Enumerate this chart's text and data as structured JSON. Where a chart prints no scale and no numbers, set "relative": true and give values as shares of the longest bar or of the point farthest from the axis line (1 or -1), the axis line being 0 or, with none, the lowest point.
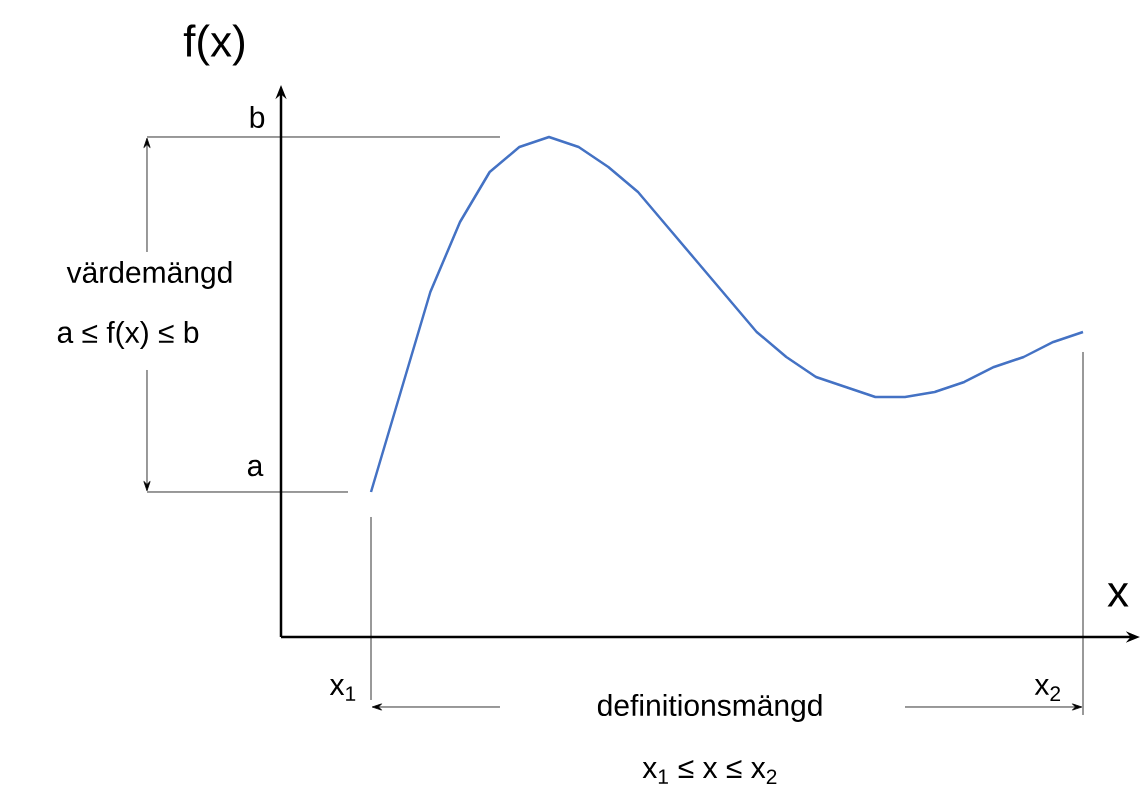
{
  "chart_data": {
    "type": "line",
    "relative": true,
    "xlabel": "x",
    "ylabel": "f(x)",
    "color": "#4472c4",
    "categories": [
      null,
      null,
      null,
      null,
      null,
      null,
      null,
      null,
      null,
      null,
      null,
      null,
      null,
      null,
      null,
      null,
      null,
      null,
      null,
      null,
      null,
      null,
      null,
      null,
      null
    ],
    "values": [
      0.29,
      0.49,
      0.69,
      0.83,
      0.93,
      0.98,
      1.0,
      0.98,
      0.94,
      0.89,
      0.82,
      0.75,
      0.68,
      0.61,
      0.56,
      0.52,
      0.5,
      0.48,
      0.48,
      0.49,
      0.51,
      0.54,
      0.56,
      0.59,
      0.61
    ],
    "annotations": [
      "b",
      "a",
      "x$_{1}$",
      "x$_{2}$",
      "värdemängd",
      "a  ≤  f(x)  ≤ b",
      "definitionsmängd",
      "x$_{1}$  ≤  x  ≤  x$_{2}$"
    ]
  }
}
